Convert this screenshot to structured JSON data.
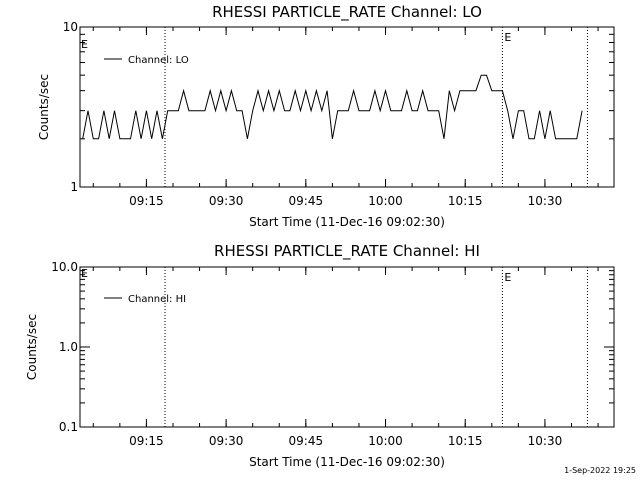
{
  "footer": {
    "timestamp": "1-Sep-2022 19:25"
  },
  "chart_data": [
    {
      "type": "line",
      "title": "RHESSI PARTICLE_RATE Channel: LO",
      "xlabel": "Start Time (11-Dec-16 09:02:30)",
      "ylabel": "Counts/sec",
      "yscale": "log",
      "ylim": [
        1,
        10
      ],
      "yticks": [
        {
          "value": 1,
          "label": "1"
        },
        {
          "value": 10,
          "label": "10"
        }
      ],
      "xlim": [
        "09:02:30",
        "10:43:00"
      ],
      "xticks": [
        "09:15",
        "09:30",
        "09:45",
        "10:00",
        "10:15",
        "10:30"
      ],
      "markers": [
        {
          "time": "09:18:30",
          "label": ""
        },
        {
          "time": "10:22:00",
          "label": "E"
        },
        {
          "time": "10:38:00",
          "label": ""
        }
      ],
      "start_marker_label": "E",
      "legend": "top-left",
      "series": [
        {
          "name": "Channel: LO",
          "x": [
            "09:03:00",
            "09:04:00",
            "09:05:00",
            "09:06:00",
            "09:07:00",
            "09:08:00",
            "09:09:00",
            "09:10:00",
            "09:11:00",
            "09:12:00",
            "09:13:00",
            "09:14:00",
            "09:15:00",
            "09:16:00",
            "09:17:00",
            "09:18:00",
            "09:19:00",
            "09:20:00",
            "09:21:00",
            "09:22:00",
            "09:23:00",
            "09:24:00",
            "09:25:00",
            "09:26:00",
            "09:27:00",
            "09:28:00",
            "09:29:00",
            "09:30:00",
            "09:31:00",
            "09:32:00",
            "09:33:00",
            "09:34:00",
            "09:35:00",
            "09:36:00",
            "09:37:00",
            "09:38:00",
            "09:39:00",
            "09:40:00",
            "09:41:00",
            "09:42:00",
            "09:43:00",
            "09:44:00",
            "09:45:00",
            "09:46:00",
            "09:47:00",
            "09:48:00",
            "09:49:00",
            "09:50:00",
            "09:51:00",
            "09:52:00",
            "09:53:00",
            "09:54:00",
            "09:55:00",
            "09:56:00",
            "09:57:00",
            "09:58:00",
            "09:59:00",
            "10:00:00",
            "10:01:00",
            "10:02:00",
            "10:03:00",
            "10:04:00",
            "10:05:00",
            "10:06:00",
            "10:07:00",
            "10:08:00",
            "10:09:00",
            "10:10:00",
            "10:11:00",
            "10:12:00",
            "10:13:00",
            "10:14:00",
            "10:15:00",
            "10:16:00",
            "10:17:00",
            "10:18:00",
            "10:19:00",
            "10:20:00",
            "10:21:00",
            "10:22:00",
            "10:23:00",
            "10:24:00",
            "10:25:00",
            "10:26:00",
            "10:27:00",
            "10:28:00",
            "10:29:00",
            "10:30:00",
            "10:31:00",
            "10:32:00",
            "10:33:00",
            "10:34:00",
            "10:35:00",
            "10:36:00",
            "10:37:00"
          ],
          "values": [
            2,
            3,
            2,
            2,
            3,
            2,
            3,
            2,
            2,
            2,
            3,
            2,
            3,
            2,
            3,
            2,
            3,
            3,
            3,
            4,
            3,
            3,
            3,
            3,
            4,
            3,
            4,
            3,
            4,
            3,
            3,
            2,
            3,
            4,
            3,
            4,
            3,
            4,
            3,
            3,
            4,
            3,
            4,
            3,
            4,
            3,
            4,
            2,
            3,
            3,
            3,
            4,
            3,
            3,
            3,
            4,
            3,
            4,
            3,
            3,
            3,
            4,
            3,
            3,
            4,
            3,
            3,
            3,
            2,
            4,
            3,
            4,
            4,
            4,
            4,
            5,
            5,
            4,
            4,
            4,
            3,
            2,
            3,
            3,
            2,
            2,
            3,
            2,
            3,
            2,
            2,
            2,
            2,
            2,
            3
          ]
        }
      ]
    },
    {
      "type": "line",
      "title": "RHESSI PARTICLE_RATE Channel: HI",
      "xlabel": "Start Time (11-Dec-16 09:02:30)",
      "ylabel": "Counts/sec",
      "yscale": "log",
      "ylim": [
        0.1,
        10
      ],
      "yticks": [
        {
          "value": 0.1,
          "label": "0.1"
        },
        {
          "value": 1,
          "label": "1.0"
        },
        {
          "value": 10,
          "label": "10.0"
        }
      ],
      "xlim": [
        "09:02:30",
        "10:43:00"
      ],
      "xticks": [
        "09:15",
        "09:30",
        "09:45",
        "10:00",
        "10:15",
        "10:30"
      ],
      "markers": [
        {
          "time": "09:18:30",
          "label": ""
        },
        {
          "time": "10:22:00",
          "label": "E"
        },
        {
          "time": "10:38:00",
          "label": ""
        }
      ],
      "start_marker_label": "E",
      "legend": "top-left",
      "series": [
        {
          "name": "Channel: HI",
          "x": [],
          "values": []
        }
      ]
    }
  ]
}
